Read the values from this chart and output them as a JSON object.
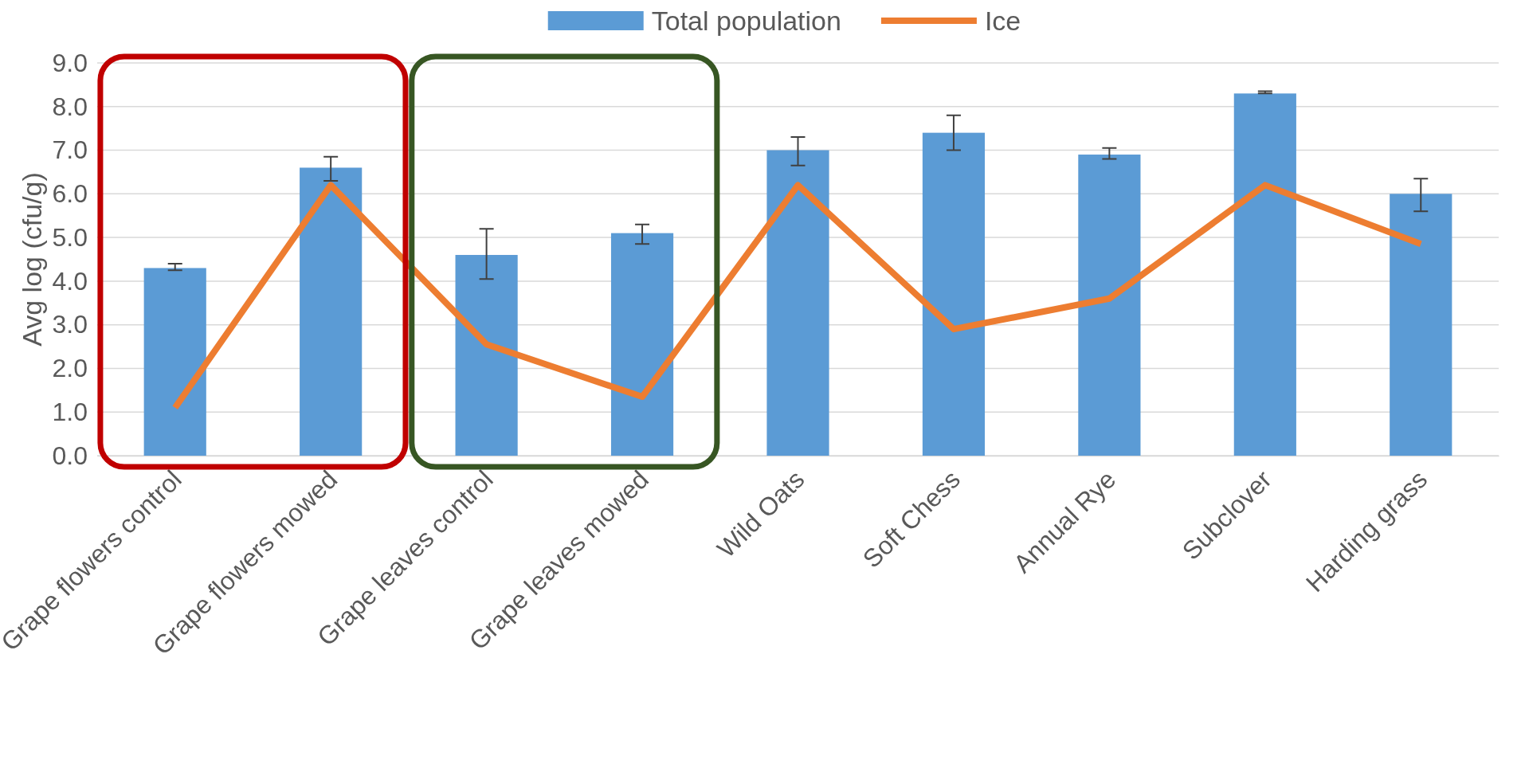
{
  "chart_data": {
    "type": "bar",
    "ylabel": "Avg log (cfu/g)",
    "categories": [
      "Grape flowers control",
      "Grape flowers mowed",
      "Grape leaves control",
      "Grape leaves mowed",
      "Wild Oats",
      "Soft Chess",
      "Annual Rye",
      "Subclover",
      "Harding grass"
    ],
    "series": [
      {
        "name": "Total population",
        "color": "#5b9bd5",
        "values": [
          4.3,
          6.6,
          4.6,
          5.1,
          7.0,
          7.4,
          6.9,
          8.3,
          6.0
        ],
        "errors": [
          [
            4.25,
            4.4
          ],
          [
            6.3,
            6.85
          ],
          [
            4.05,
            5.2
          ],
          [
            4.85,
            5.3
          ],
          [
            6.65,
            7.3
          ],
          [
            7.0,
            7.8
          ],
          [
            6.8,
            7.05
          ],
          [
            8.3,
            8.35
          ],
          [
            5.6,
            6.35
          ]
        ]
      },
      {
        "name": "Ice",
        "type": "line",
        "color": "#ed7d31",
        "marker": "none",
        "line_style": "solid",
        "values": [
          1.1,
          6.2,
          2.55,
          1.35,
          6.2,
          2.9,
          3.6,
          6.2,
          4.85
        ]
      }
    ],
    "ylim": [
      0,
      9
    ],
    "yticks": [
      {
        "value": 0,
        "label": "0.0"
      },
      {
        "value": 1,
        "label": "1.0"
      },
      {
        "value": 2,
        "label": "2.0"
      },
      {
        "value": 3,
        "label": "3.0"
      },
      {
        "value": 4,
        "label": "4.0"
      },
      {
        "value": 5,
        "label": "5.0"
      },
      {
        "value": 6,
        "label": "6.0"
      },
      {
        "value": 7,
        "label": "7.0"
      },
      {
        "value": 8,
        "label": "8.0"
      },
      {
        "value": 9,
        "label": "9.0"
      }
    ],
    "grid": "y",
    "legend": "top"
  }
}
